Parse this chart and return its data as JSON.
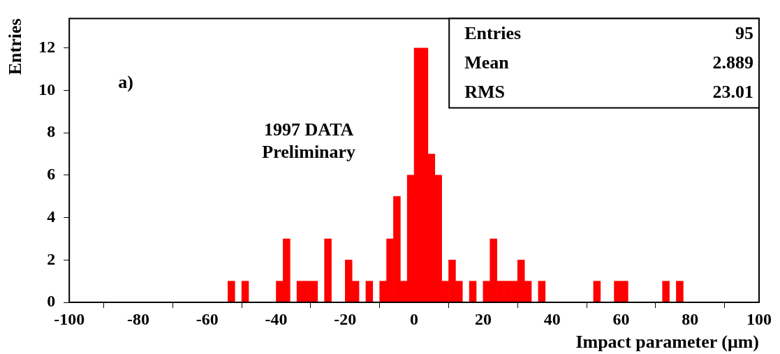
{
  "chart_data": {
    "type": "histogram",
    "xlabel": "Impact parameter (μm)",
    "ylabel": "Entries",
    "bins": [
      -100,
      -98,
      -96,
      -94,
      -92,
      -90,
      -88,
      -86,
      -84,
      -82,
      -80,
      -78,
      -76,
      -74,
      -72,
      -70,
      -68,
      -66,
      -64,
      -62,
      -60,
      -58,
      -56,
      -54,
      -52,
      -50,
      -48,
      -46,
      -44,
      -42,
      -40,
      -38,
      -36,
      -34,
      -32,
      -30,
      -28,
      -26,
      -24,
      -22,
      -20,
      -18,
      -16,
      -14,
      -12,
      -10,
      -8,
      -6,
      -4,
      -2,
      0,
      2,
      4,
      6,
      8,
      10,
      12,
      14,
      16,
      18,
      20,
      22,
      24,
      26,
      28,
      30,
      32,
      34,
      36,
      38,
      40,
      42,
      44,
      46,
      48,
      50,
      52,
      54,
      56,
      58,
      60,
      62,
      64,
      66,
      68,
      70,
      72,
      74,
      76,
      78,
      80,
      82,
      84,
      86,
      88,
      90,
      92,
      94,
      96,
      98,
      100
    ],
    "values": [
      0,
      0,
      0,
      0,
      0,
      0,
      0,
      0,
      0,
      0,
      0,
      0,
      0,
      0,
      0,
      0,
      0,
      0,
      0,
      0,
      0,
      0,
      0,
      1,
      0,
      1,
      0,
      0,
      0,
      0,
      1,
      3,
      0,
      1,
      1,
      1,
      0,
      3,
      0,
      0,
      2,
      1,
      0,
      1,
      0,
      1,
      3,
      5,
      1,
      6,
      12,
      12,
      7,
      6,
      1,
      2,
      1,
      0,
      1,
      0,
      1,
      3,
      1,
      1,
      1,
      2,
      1,
      0,
      1,
      0,
      0,
      0,
      0,
      0,
      0,
      0,
      1,
      0,
      0,
      1,
      1,
      0,
      0,
      0,
      0,
      0,
      1,
      0,
      1,
      0,
      0,
      0,
      0,
      0,
      0,
      0,
      0,
      0,
      0,
      0
    ],
    "color": "#ff0000",
    "xlim": [
      -100,
      100
    ],
    "xticks": [
      -100,
      -80,
      -60,
      -40,
      -20,
      0,
      20,
      40,
      60,
      80,
      100
    ],
    "ylim": [
      0,
      13.4
    ],
    "yticks": [
      0,
      2,
      4,
      6,
      8,
      10,
      12
    ],
    "grid": false,
    "legend": false,
    "annotations": [
      "a)",
      "1997 DATA",
      "Preliminary",
      "Entries",
      "95",
      "Mean",
      "2.889",
      "RMS",
      "23.01"
    ]
  }
}
